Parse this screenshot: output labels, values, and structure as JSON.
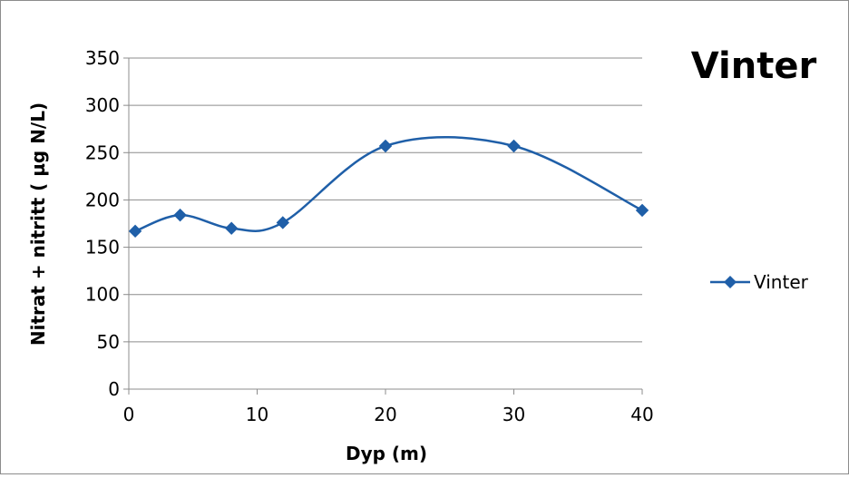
{
  "chart_data": {
    "type": "line",
    "title": "Vinter",
    "xlabel": "Dyp (m)",
    "ylabel": "Nitrat + nitritt ( µg N/L)",
    "x_categories": [
      "0",
      "10",
      "20",
      "30",
      "40"
    ],
    "xlim": [
      0,
      40
    ],
    "ylim": [
      0,
      350
    ],
    "y_ticks": [
      0,
      50,
      100,
      150,
      200,
      250,
      300,
      350
    ],
    "grid": true,
    "smooth": true,
    "legend_position": "right",
    "series": [
      {
        "name": "Vinter",
        "color": "#1f5fa8",
        "marker": "diamond",
        "points": [
          {
            "x": 0.5,
            "y": 167
          },
          {
            "x": 4,
            "y": 184
          },
          {
            "x": 8,
            "y": 170
          },
          {
            "x": 12,
            "y": 176
          },
          {
            "x": 20,
            "y": 257
          },
          {
            "x": 30,
            "y": 257
          },
          {
            "x": 40,
            "y": 189
          }
        ]
      }
    ]
  }
}
